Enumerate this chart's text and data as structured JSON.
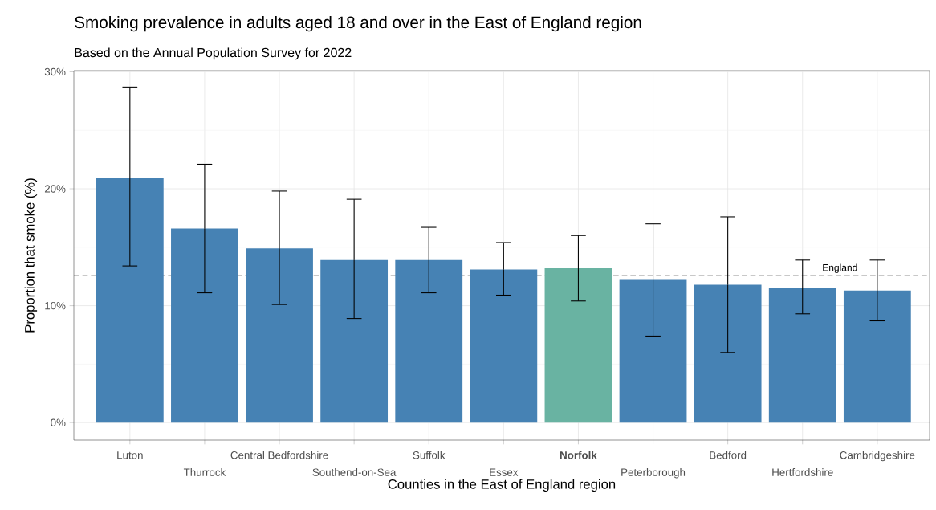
{
  "chart_data": {
    "type": "bar",
    "title": "Smoking prevalence in adults aged 18 and over in the East of England region",
    "subtitle": "Based on the Annual Population Survey for 2022",
    "xlabel": "Counties in the East of England region",
    "ylabel": "Proportion that smoke (%)",
    "categories": [
      "Luton",
      "Thurrock",
      "Central Bedfordshire",
      "Southend-on-Sea",
      "Suffolk",
      "Essex",
      "Norfolk",
      "Peterborough",
      "Bedford",
      "Hertfordshire",
      "Cambridgeshire"
    ],
    "values": [
      20.9,
      16.6,
      14.9,
      13.9,
      13.9,
      13.1,
      13.2,
      12.2,
      11.8,
      11.5,
      11.3
    ],
    "errors": [
      [
        13.4,
        28.7
      ],
      [
        11.1,
        22.1
      ],
      [
        10.1,
        19.8
      ],
      [
        8.9,
        19.1
      ],
      [
        11.1,
        16.7
      ],
      [
        10.9,
        15.4
      ],
      [
        10.4,
        16.0
      ],
      [
        7.4,
        17.0
      ],
      [
        6.0,
        17.6
      ],
      [
        9.3,
        13.9
      ],
      [
        8.7,
        13.9
      ]
    ],
    "colors": [
      "#4682b4",
      "#4682b4",
      "#4682b4",
      "#4682b4",
      "#4682b4",
      "#4682b4",
      "#69b3a2",
      "#4682b4",
      "#4682b4",
      "#4682b4",
      "#4682b4"
    ],
    "ylim": [
      -1.5,
      30.1
    ],
    "yticks": [
      {
        "value": 0,
        "label": "0%"
      },
      {
        "value": 10,
        "label": "10%"
      },
      {
        "value": 20,
        "label": "20%"
      },
      {
        "value": 30,
        "label": "30%"
      }
    ],
    "ref_lines": [
      {
        "axis": "y",
        "value": 12.6,
        "label": "England",
        "line_style": "dashed"
      }
    ],
    "grid": true
  }
}
